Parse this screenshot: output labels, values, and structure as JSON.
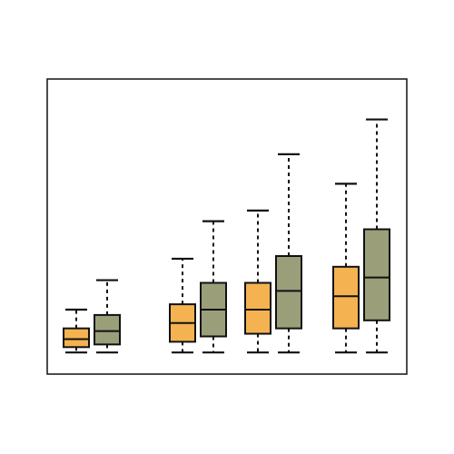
{
  "chart_data": {
    "type": "box",
    "title": "",
    "xlabel": "",
    "ylabel": "",
    "ylim": [
      0,
      100
    ],
    "grid": false,
    "legend": "none",
    "colors": {
      "series_1": "#f4b350",
      "series_2": "#9a9f7a",
      "stroke": "#111111"
    },
    "groups": [
      {
        "boxes": [
          {
            "series": 1,
            "min": 4,
            "q1": 6,
            "median": 9,
            "q3": 13,
            "max": 20
          },
          {
            "series": 2,
            "min": 4,
            "q1": 7,
            "median": 12,
            "q3": 18,
            "max": 31
          }
        ]
      },
      {
        "boxes": [
          {
            "series": 1,
            "min": 4,
            "q1": 8,
            "median": 15,
            "q3": 22,
            "max": 39
          },
          {
            "series": 2,
            "min": 4,
            "q1": 10,
            "median": 20,
            "q3": 30,
            "max": 53
          }
        ]
      },
      {
        "boxes": [
          {
            "series": 1,
            "min": 4,
            "q1": 11,
            "median": 20,
            "q3": 30,
            "max": 57
          },
          {
            "series": 2,
            "min": 4,
            "q1": 13,
            "median": 27,
            "q3": 40,
            "max": 78
          }
        ]
      },
      {
        "boxes": [
          {
            "series": 1,
            "min": 4,
            "q1": 13,
            "median": 25,
            "q3": 36,
            "max": 67
          },
          {
            "series": 2,
            "min": 4,
            "q1": 16,
            "median": 32,
            "q3": 50,
            "max": 91
          }
        ]
      }
    ]
  }
}
